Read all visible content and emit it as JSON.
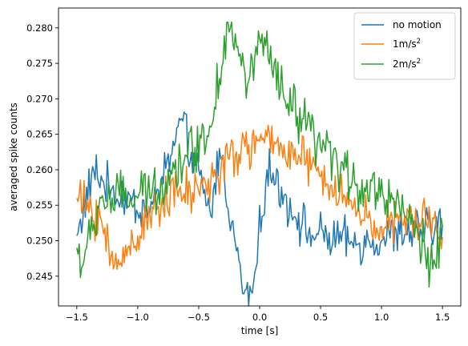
{
  "chart_data": {
    "type": "line",
    "xlabel": "time [s]",
    "ylabel": "averaged spike counts",
    "xlim": [
      -1.65,
      1.65
    ],
    "ylim": [
      0.2408,
      0.2828
    ],
    "x_ticks": [
      -1.5,
      -1.0,
      -0.5,
      0.0,
      0.5,
      1.0,
      1.5
    ],
    "x_tick_labels": [
      "−1.5",
      "−1.0",
      "−0.5",
      "0.0",
      "0.5",
      "1.0",
      "1.5"
    ],
    "y_ticks": [
      0.245,
      0.25,
      0.255,
      0.26,
      0.265,
      0.27,
      0.275,
      0.28
    ],
    "y_tick_labels": [
      "0.245",
      "0.250",
      "0.255",
      "0.260",
      "0.265",
      "0.270",
      "0.275",
      "0.280"
    ],
    "grid": false,
    "legend_position": "top-right",
    "x": {
      "start": -1.5,
      "end": 1.5,
      "count": 301
    },
    "series": [
      {
        "name": "no motion",
        "color": "#1f77b4",
        "baseline": 0.2545,
        "variation": 0.0038,
        "points": [
          [
            -1.5,
            0.2507
          ],
          [
            -1.36,
            0.2598
          ],
          [
            -1.22,
            0.257
          ],
          [
            -0.9,
            0.2539
          ],
          [
            -0.69,
            0.264
          ],
          [
            -0.65,
            0.267
          ],
          [
            -0.4,
            0.2535
          ],
          [
            -0.33,
            0.263
          ],
          [
            -0.13,
            0.2425
          ],
          [
            -0.06,
            0.2426
          ],
          [
            0.06,
            0.26
          ],
          [
            0.4,
            0.251
          ],
          [
            0.8,
            0.2495
          ],
          [
            1.2,
            0.251
          ],
          [
            1.5,
            0.2522
          ]
        ]
      },
      {
        "name": "1m/s²",
        "color": "#ff7f0e",
        "baseline": 0.2545,
        "variation": 0.004,
        "points": [
          [
            -1.5,
            0.256
          ],
          [
            -1.3,
            0.253
          ],
          [
            -1.2,
            0.246
          ],
          [
            -0.8,
            0.256
          ],
          [
            -0.5,
            0.257
          ],
          [
            -0.2,
            0.262
          ],
          [
            0.0,
            0.264
          ],
          [
            0.2,
            0.2635
          ],
          [
            0.5,
            0.259
          ],
          [
            0.8,
            0.254
          ],
          [
            1.0,
            0.252
          ],
          [
            1.4,
            0.253
          ],
          [
            1.5,
            0.2505
          ]
        ]
      },
      {
        "name": "2m/s²",
        "color": "#2ca02c",
        "baseline": 0.254,
        "variation": 0.0045,
        "points": [
          [
            -1.5,
            0.249
          ],
          [
            -1.45,
            0.2465
          ],
          [
            -1.3,
            0.256
          ],
          [
            -1.0,
            0.256
          ],
          [
            -0.8,
            0.258
          ],
          [
            -0.6,
            0.262
          ],
          [
            -0.4,
            0.266
          ],
          [
            -0.26,
            0.2808
          ],
          [
            -0.1,
            0.272
          ],
          [
            0.0,
            0.2785
          ],
          [
            0.2,
            0.27
          ],
          [
            0.5,
            0.263
          ],
          [
            0.8,
            0.258
          ],
          [
            1.1,
            0.256
          ],
          [
            1.3,
            0.251
          ],
          [
            1.4,
            0.2465
          ],
          [
            1.5,
            0.252
          ]
        ]
      }
    ],
    "legend": [
      {
        "label_base": "no motion",
        "superscript": "",
        "color": "#1f77b4"
      },
      {
        "label_base": "1m/s",
        "superscript": "2",
        "color": "#ff7f0e"
      },
      {
        "label_base": "2m/s",
        "superscript": "2",
        "color": "#2ca02c"
      }
    ]
  }
}
